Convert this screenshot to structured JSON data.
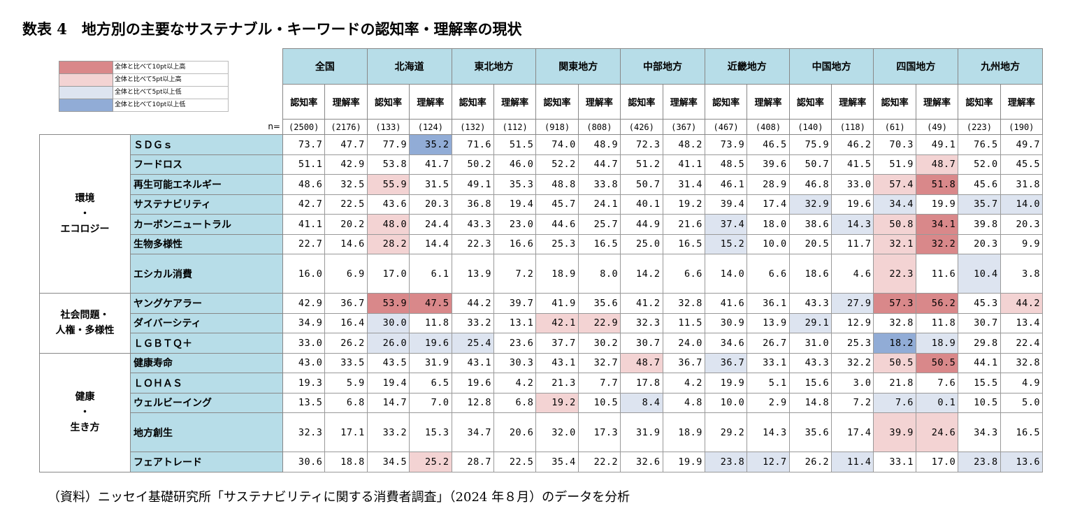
{
  "title": "数表 4　地方別の主要なサステナブル・キーワードの認知率・理解率の現状",
  "legend": [
    {
      "label": "全体と比べて10pt以上高",
      "color": "#d9888a"
    },
    {
      "label": "全体と比べて5pt以上高",
      "color": "#f3d3d3"
    },
    {
      "label": "全体と比べて5pt以上低",
      "color": "#dde4f0"
    },
    {
      "label": "全体と比べて10pt以上低",
      "color": "#91acd6"
    }
  ],
  "n_label": "n=",
  "regions": [
    "全国",
    "北海道",
    "東北地方",
    "関東地方",
    "中部地方",
    "近畿地方",
    "中国地方",
    "四国地方",
    "九州地方"
  ],
  "subheaders": [
    "認知率",
    "理解率"
  ],
  "n": [
    "(2500)",
    "(2176)",
    "(133)",
    "(124)",
    "(132)",
    "(112)",
    "(918)",
    "(808)",
    "(426)",
    "(367)",
    "(467)",
    "(408)",
    "(140)",
    "(118)",
    "(61)",
    "(49)",
    "(223)",
    "(190)"
  ],
  "categories": [
    {
      "label_lines": [
        "環境",
        "・",
        "エコロジー"
      ],
      "rows": [
        {
          "keyword": "ＳＤＧｓ",
          "values": [
            "73.7",
            "47.7",
            "77.9",
            "35.2",
            "71.6",
            "51.5",
            "74.0",
            "48.9",
            "72.3",
            "48.2",
            "73.9",
            "46.5",
            "75.9",
            "46.2",
            "70.3",
            "49.1",
            "76.5",
            "49.7"
          ],
          "shade": [
            "",
            "",
            "",
            "l10",
            "",
            "",
            "",
            "",
            "",
            "",
            "",
            "",
            "",
            "",
            "",
            "",
            "",
            ""
          ]
        },
        {
          "keyword": "フードロス",
          "values": [
            "51.1",
            "42.9",
            "53.8",
            "41.7",
            "50.2",
            "46.0",
            "52.2",
            "44.7",
            "51.2",
            "41.1",
            "48.5",
            "39.6",
            "50.7",
            "41.5",
            "51.9",
            "48.7",
            "52.0",
            "45.5"
          ],
          "shade": [
            "",
            "",
            "",
            "",
            "",
            "",
            "",
            "",
            "",
            "",
            "",
            "",
            "",
            "",
            "",
            "h5",
            "",
            ""
          ]
        },
        {
          "keyword": "再生可能エネルギー",
          "values": [
            "48.6",
            "32.5",
            "55.9",
            "31.5",
            "49.1",
            "35.3",
            "48.8",
            "33.8",
            "50.7",
            "31.4",
            "46.1",
            "28.9",
            "46.8",
            "33.0",
            "57.4",
            "51.8",
            "45.6",
            "31.8"
          ],
          "shade": [
            "",
            "",
            "h5",
            "",
            "",
            "",
            "",
            "",
            "",
            "",
            "",
            "",
            "",
            "",
            "h5",
            "h10",
            "",
            ""
          ]
        },
        {
          "keyword": "サステナビリティ",
          "values": [
            "42.7",
            "22.5",
            "43.6",
            "20.3",
            "36.8",
            "19.4",
            "45.7",
            "24.1",
            "40.1",
            "19.2",
            "39.4",
            "17.4",
            "32.9",
            "19.6",
            "34.4",
            "19.9",
            "35.7",
            "14.0"
          ],
          "shade": [
            "",
            "",
            "",
            "",
            "",
            "",
            "",
            "",
            "",
            "",
            "",
            "",
            "l5",
            "",
            "l5",
            "",
            "l5",
            "l5"
          ]
        },
        {
          "keyword": "カーボンニュートラル",
          "values": [
            "41.1",
            "20.2",
            "48.0",
            "24.4",
            "43.3",
            "23.0",
            "44.6",
            "25.7",
            "44.9",
            "21.6",
            "37.4",
            "18.0",
            "38.6",
            "14.3",
            "50.8",
            "34.1",
            "39.8",
            "20.3"
          ],
          "shade": [
            "",
            "",
            "h5",
            "",
            "",
            "",
            "",
            "",
            "",
            "",
            "l5",
            "",
            "",
            "l5",
            "h5",
            "h10",
            "",
            ""
          ]
        },
        {
          "keyword": "生物多様性",
          "values": [
            "22.7",
            "14.6",
            "28.2",
            "14.4",
            "22.3",
            "16.6",
            "25.3",
            "16.5",
            "25.0",
            "16.5",
            "15.2",
            "10.0",
            "20.5",
            "11.7",
            "32.1",
            "32.2",
            "20.3",
            "9.9"
          ],
          "shade": [
            "",
            "",
            "h5",
            "",
            "",
            "",
            "",
            "",
            "",
            "",
            "l5",
            "",
            "",
            "",
            "h5",
            "h10",
            "",
            ""
          ]
        },
        {
          "keyword": "エシカル消費",
          "tall": true,
          "values": [
            "16.0",
            "6.9",
            "17.0",
            "6.1",
            "13.9",
            "7.2",
            "18.9",
            "8.0",
            "14.2",
            "6.6",
            "14.0",
            "6.6",
            "18.6",
            "4.6",
            "22.3",
            "11.6",
            "10.4",
            "3.8"
          ],
          "shade": [
            "",
            "",
            "",
            "",
            "",
            "",
            "",
            "",
            "",
            "",
            "",
            "",
            "",
            "",
            "h5",
            "",
            "l5",
            ""
          ]
        }
      ]
    },
    {
      "label_lines": [
        "社会問題・",
        "人権・多様性"
      ],
      "rows": [
        {
          "keyword": "ヤングケアラー",
          "values": [
            "42.9",
            "36.7",
            "53.9",
            "47.5",
            "44.2",
            "39.7",
            "41.9",
            "35.6",
            "41.2",
            "32.8",
            "41.6",
            "36.1",
            "43.3",
            "27.9",
            "57.3",
            "56.2",
            "45.3",
            "44.2"
          ],
          "shade": [
            "",
            "",
            "h10",
            "h10",
            "",
            "",
            "",
            "",
            "",
            "",
            "",
            "",
            "",
            "l5",
            "h10",
            "h10",
            "",
            "h5"
          ]
        },
        {
          "keyword": "ダイバーシティ",
          "values": [
            "34.9",
            "16.4",
            "30.0",
            "11.8",
            "33.2",
            "13.1",
            "42.1",
            "22.9",
            "32.3",
            "11.5",
            "30.9",
            "13.9",
            "29.1",
            "12.9",
            "32.8",
            "11.8",
            "30.7",
            "13.4"
          ],
          "shade": [
            "",
            "",
            "l5",
            "",
            "",
            "",
            "h5",
            "h5",
            "",
            "",
            "",
            "",
            "l5",
            "",
            "",
            "",
            "",
            ""
          ]
        },
        {
          "keyword": "ＬＧＢＴＱ＋",
          "values": [
            "33.0",
            "26.2",
            "26.0",
            "19.6",
            "25.4",
            "23.6",
            "37.7",
            "30.2",
            "30.7",
            "24.0",
            "34.6",
            "26.7",
            "31.0",
            "25.3",
            "18.2",
            "18.9",
            "29.8",
            "22.4"
          ],
          "shade": [
            "",
            "",
            "l5",
            "l5",
            "l5",
            "",
            "",
            "",
            "",
            "",
            "",
            "",
            "",
            "",
            "l10",
            "l5",
            "",
            ""
          ]
        }
      ]
    },
    {
      "label_lines": [
        "健康",
        "・",
        "生き方"
      ],
      "rows": [
        {
          "keyword": "健康寿命",
          "values": [
            "43.0",
            "33.5",
            "43.5",
            "31.9",
            "43.1",
            "30.3",
            "43.1",
            "32.7",
            "48.7",
            "36.7",
            "36.7",
            "33.1",
            "43.3",
            "32.2",
            "50.5",
            "50.5",
            "44.1",
            "32.8"
          ],
          "shade": [
            "",
            "",
            "",
            "",
            "",
            "",
            "",
            "",
            "h5",
            "",
            "l5",
            "",
            "",
            "",
            "h5",
            "h10",
            "",
            ""
          ]
        },
        {
          "keyword": "ＬＯＨＡＳ",
          "values": [
            "19.3",
            "5.9",
            "19.4",
            "6.5",
            "19.6",
            "4.2",
            "21.3",
            "7.7",
            "17.8",
            "4.2",
            "19.9",
            "5.1",
            "15.6",
            "3.0",
            "21.8",
            "7.6",
            "15.5",
            "4.9"
          ],
          "shade": [
            "",
            "",
            "",
            "",
            "",
            "",
            "",
            "",
            "",
            "",
            "",
            "",
            "",
            "",
            "",
            "",
            "",
            ""
          ]
        },
        {
          "keyword": "ウェルビーイング",
          "values": [
            "13.5",
            "6.8",
            "14.7",
            "7.0",
            "12.8",
            "6.8",
            "19.2",
            "10.5",
            "8.4",
            "4.8",
            "10.0",
            "2.9",
            "14.8",
            "7.2",
            "7.6",
            "0.1",
            "10.5",
            "5.0"
          ],
          "shade": [
            "",
            "",
            "",
            "",
            "",
            "",
            "h5",
            "",
            "l5",
            "",
            "",
            "",
            "",
            "",
            "l5",
            "l5",
            "",
            ""
          ]
        },
        {
          "keyword": "地方創生",
          "tall": true,
          "values": [
            "32.3",
            "17.1",
            "33.2",
            "15.3",
            "34.7",
            "20.6",
            "32.0",
            "17.3",
            "31.9",
            "18.9",
            "29.2",
            "14.3",
            "35.6",
            "17.4",
            "39.9",
            "24.6",
            "34.3",
            "16.5"
          ],
          "shade": [
            "",
            "",
            "",
            "",
            "",
            "",
            "",
            "",
            "",
            "",
            "",
            "",
            "",
            "",
            "h5",
            "h5",
            "",
            ""
          ]
        },
        {
          "keyword": "フェアトレード",
          "values": [
            "30.6",
            "18.8",
            "34.5",
            "25.2",
            "28.7",
            "22.5",
            "35.4",
            "22.2",
            "32.6",
            "19.9",
            "23.8",
            "12.7",
            "26.2",
            "11.4",
            "33.1",
            "17.0",
            "23.8",
            "13.6"
          ],
          "shade": [
            "",
            "",
            "",
            "h5",
            "",
            "",
            "",
            "",
            "",
            "",
            "l5",
            "l5",
            "",
            "l5",
            "",
            "",
            "l5",
            "l5"
          ]
        }
      ]
    }
  ],
  "source": "（資料）ニッセイ基礎研究所「サステナビリティに関する消費者調査」（2024 年８月）のデータを分析"
}
